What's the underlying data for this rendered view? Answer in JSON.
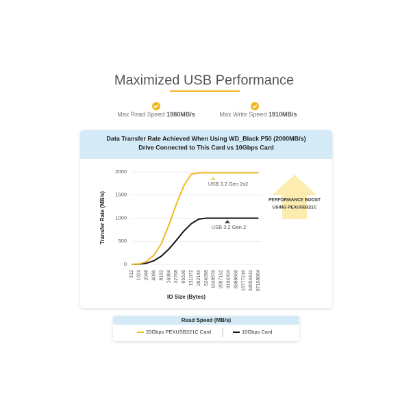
{
  "header": {
    "title": "Maximized USB Performance",
    "stats": [
      {
        "label": "Max Read Speed",
        "value": "1980MB/s"
      },
      {
        "label": "Max Write Speed",
        "value": "1910MB/s"
      }
    ]
  },
  "chart_data": {
    "type": "line",
    "title": [
      "Data Transfer Rate Achieved When Using WD_Black P50 (2000MB/s)",
      "Drive Connected to This Card vs 10Gbps Card"
    ],
    "x_label": "IO Size (Bytes)",
    "y_label": "Transfer Rate (MB/s)",
    "categories": [
      "512",
      "1024",
      "2048",
      "4096",
      "8192",
      "16384",
      "32768",
      "65536",
      "131072",
      "262144",
      "524288",
      "1048576",
      "2097152",
      "4194304",
      "8388608",
      "16777216",
      "33554432",
      "67108864"
    ],
    "series": [
      {
        "name": "20Gbps PEXUSB321C Card",
        "color": "#f2b71f",
        "values": [
          0,
          10,
          60,
          200,
          450,
          850,
          1300,
          1700,
          1950,
          1980,
          1980,
          1980,
          1980,
          1980,
          1980,
          1980,
          1980,
          1980
        ]
      },
      {
        "name": "10Gbps Card",
        "color": "#111111",
        "values": [
          0,
          5,
          25,
          80,
          180,
          330,
          520,
          720,
          880,
          980,
          1000,
          1000,
          1000,
          1000,
          1000,
          1000,
          1000,
          1000
        ]
      }
    ],
    "ylim": [
      0,
      2000
    ],
    "yticks": [
      0,
      500,
      1000,
      1500,
      2000
    ],
    "grid": true,
    "annotations": [
      "USB 3.2 Gen 2x2",
      "USB 3.2 Gen 2"
    ],
    "legend_title": "Read Speed (MB/s)"
  },
  "callout": [
    "PERFORMANCE BOOST",
    "USING PEXUSB321C"
  ]
}
